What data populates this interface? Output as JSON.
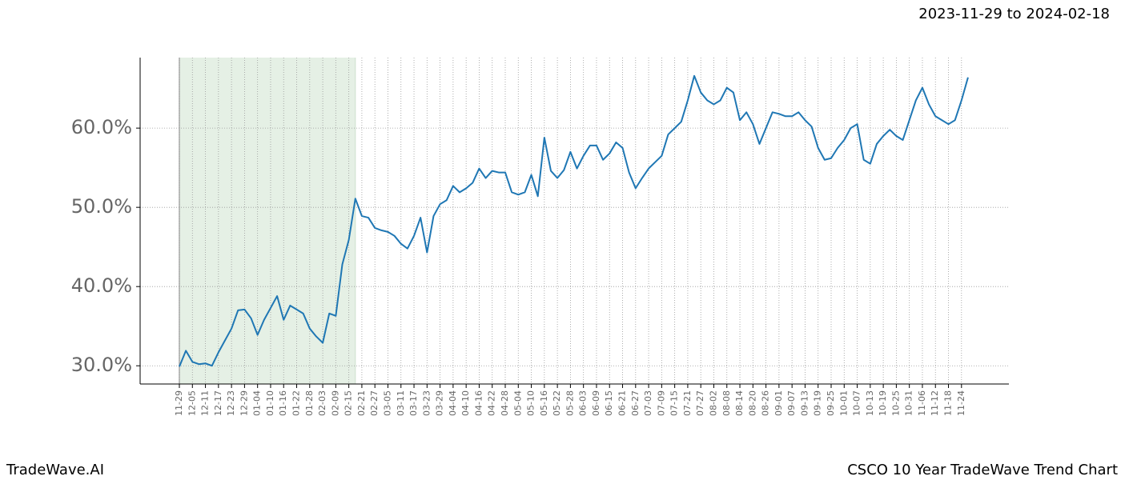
{
  "header": {
    "subtitle": "2023-11-29 to 2024-02-18"
  },
  "footer": {
    "left": "TradeWave.AI",
    "right": "CSCO 10 Year TradeWave Trend Chart"
  },
  "chart_data": {
    "type": "line",
    "categories": [
      "11-29",
      null,
      "12-05",
      null,
      "12-11",
      null,
      "12-17",
      null,
      "12-23",
      null,
      "12-29",
      null,
      "01-04",
      null,
      "01-10",
      null,
      "01-16",
      null,
      "01-22",
      null,
      "01-28",
      null,
      "02-03",
      null,
      "02-09",
      null,
      "02-15",
      null,
      "02-21",
      null,
      "02-27",
      null,
      "03-05",
      null,
      "03-11",
      null,
      "03-17",
      null,
      "03-23",
      null,
      "03-29",
      null,
      "04-04",
      null,
      "04-10",
      null,
      "04-16",
      null,
      "04-22",
      null,
      "04-28",
      null,
      "05-04",
      null,
      "05-10",
      null,
      "05-16",
      null,
      "05-22",
      null,
      "05-28",
      null,
      "06-03",
      null,
      "06-09",
      null,
      "06-15",
      null,
      "06-21",
      null,
      "06-27",
      null,
      "07-03",
      null,
      "07-09",
      null,
      "07-15",
      null,
      "07-21",
      null,
      "07-27",
      null,
      "08-02",
      null,
      "08-08",
      null,
      "08-14",
      null,
      "08-20",
      null,
      "08-26",
      null,
      "09-01",
      null,
      "09-07",
      null,
      "09-13",
      null,
      "09-19",
      null,
      "09-25",
      null,
      "10-01",
      null,
      "10-07",
      null,
      "10-13",
      null,
      "10-19",
      null,
      "10-25",
      null,
      "10-31",
      null,
      "11-06",
      null,
      "11-12",
      null,
      "11-18",
      null,
      "11-24",
      null
    ],
    "values": [
      29.9,
      31.9,
      30.5,
      30.2,
      30.3,
      30.0,
      31.7,
      33.2,
      34.7,
      37.0,
      37.1,
      36.0,
      33.9,
      35.8,
      37.3,
      38.8,
      35.8,
      37.6,
      37.1,
      36.6,
      34.7,
      33.7,
      32.9,
      36.6,
      36.3,
      42.8,
      45.9,
      51.1,
      48.9,
      48.7,
      47.4,
      47.1,
      46.9,
      46.4,
      45.4,
      44.8,
      46.4,
      48.7,
      44.3,
      48.9,
      50.4,
      50.9,
      52.7,
      51.9,
      52.4,
      53.1,
      54.9,
      53.7,
      54.6,
      54.4,
      54.4,
      51.9,
      51.6,
      51.9,
      54.1,
      51.4,
      58.8,
      54.6,
      53.7,
      54.7,
      57.0,
      54.9,
      56.5,
      57.8,
      57.8,
      56.0,
      56.8,
      58.2,
      57.5,
      54.4,
      52.4,
      53.7,
      54.9,
      55.7,
      56.5,
      59.2,
      60.0,
      60.8,
      63.5,
      66.6,
      64.5,
      63.5,
      63.0,
      63.5,
      65.1,
      64.5,
      61.0,
      62.0,
      60.5,
      58.0,
      60.0,
      62.0,
      61.8,
      61.5,
      61.5,
      62.0,
      61.0,
      60.2,
      57.5,
      56.0,
      56.2,
      57.5,
      58.5,
      60.0,
      60.5,
      56.0,
      55.5,
      58.0,
      59.0,
      59.8,
      59.0,
      58.5,
      61.0,
      63.5,
      65.1,
      63.0,
      61.5,
      61.0,
      60.5,
      61.0,
      63.5,
      66.4
    ],
    "color": "#1f77b4",
    "highlight_range": [
      0,
      27
    ],
    "ylim": [
      27.7,
      68.9
    ],
    "yticks": [
      {
        "value": 30,
        "label": "30.0%"
      },
      {
        "value": 40,
        "label": "40.0%"
      },
      {
        "value": 50,
        "label": "50.0%"
      },
      {
        "value": 60,
        "label": "60.0%"
      }
    ],
    "grid": true
  }
}
